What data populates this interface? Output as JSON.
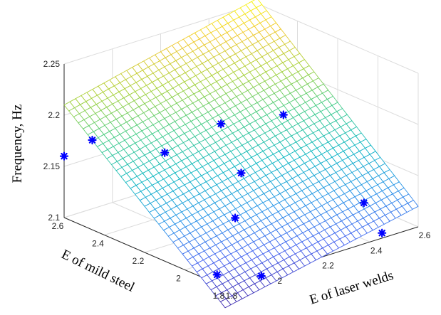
{
  "chart_data": {
    "type": "surface",
    "title": "",
    "xlabel": "E of laser welds",
    "ylabel": "E of mild steel",
    "zlabel": "Frequency, Hz",
    "xlim": [
      1.8,
      2.6
    ],
    "ylim": [
      1.8,
      2.6
    ],
    "zlim": [
      2.1,
      2.25
    ],
    "x_ticks": [
      "1.8",
      "2",
      "2.2",
      "2.4",
      "2.6"
    ],
    "y_ticks": [
      "1.8",
      "2",
      "2.2",
      "2.4",
      "2.6"
    ],
    "z_ticks": [
      "2.1",
      "2.15",
      "2.2",
      "2.25"
    ],
    "grid": true,
    "colormap": "parula",
    "surface": {
      "description": "fitted frequency plane over the E grid",
      "corners": [
        {
          "x": 1.8,
          "y": 1.8,
          "z": 2.08
        },
        {
          "x": 2.6,
          "y": 1.8,
          "z": 2.12
        },
        {
          "x": 1.8,
          "y": 2.6,
          "z": 2.21
        },
        {
          "x": 2.6,
          "y": 2.6,
          "z": 2.255
        }
      ]
    },
    "points": {
      "marker": "*",
      "color": "#0000ff",
      "data": [
        {
          "x": 1.8,
          "y": 2.6,
          "z": 2.16
        },
        {
          "x": 1.9,
          "y": 2.58,
          "z": 2.17
        },
        {
          "x": 2.05,
          "y": 2.4,
          "z": 2.162
        },
        {
          "x": 2.3,
          "y": 2.42,
          "z": 2.17
        },
        {
          "x": 2.5,
          "y": 2.35,
          "z": 2.17
        },
        {
          "x": 2.2,
          "y": 2.2,
          "z": 2.148
        },
        {
          "x": 2.05,
          "y": 2.05,
          "z": 2.128
        },
        {
          "x": 1.85,
          "y": 1.9,
          "z": 2.1
        },
        {
          "x": 1.95,
          "y": 1.8,
          "z": 2.1
        },
        {
          "x": 2.45,
          "y": 1.8,
          "z": 2.105
        },
        {
          "x": 2.5,
          "y": 1.95,
          "z": 2.118
        }
      ]
    }
  }
}
